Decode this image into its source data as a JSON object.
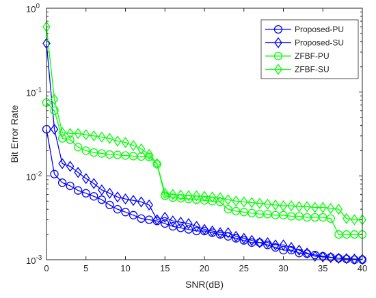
{
  "chart_data": {
    "type": "line",
    "xlabel": "SNR(dB)",
    "ylabel": "Bit Error Rate",
    "xlim": [
      0,
      40
    ],
    "ylim": [
      0.001,
      1
    ],
    "yscale": "log",
    "x_ticks": [
      0,
      5,
      10,
      15,
      20,
      25,
      30,
      35,
      40
    ],
    "y_ticks": [
      {
        "value": 1,
        "base": "10",
        "exp": "0"
      },
      {
        "value": 0.1,
        "base": "10",
        "exp": "-1"
      },
      {
        "value": 0.01,
        "base": "10",
        "exp": "-2"
      },
      {
        "value": 0.001,
        "base": "10",
        "exp": "-3"
      }
    ],
    "grid": false,
    "legend_position": "top-right",
    "x": [
      0,
      1,
      2,
      3,
      4,
      5,
      6,
      7,
      8,
      9,
      10,
      11,
      12,
      13,
      14,
      15,
      16,
      17,
      18,
      19,
      20,
      21,
      22,
      23,
      24,
      25,
      26,
      27,
      28,
      29,
      30,
      31,
      32,
      33,
      34,
      35,
      36,
      37,
      38,
      39,
      40
    ],
    "series": [
      {
        "name": "Proposed-PU",
        "color": "#0000ff",
        "marker": "circle",
        "values": [
          0.036,
          0.0105,
          0.0083,
          0.0076,
          0.0067,
          0.0062,
          0.0057,
          0.0052,
          0.0045,
          0.004,
          0.0037,
          0.0034,
          0.0031,
          0.003,
          0.0029,
          0.0027,
          0.0025,
          0.0024,
          0.0023,
          0.0022,
          0.0022,
          0.0021,
          0.002,
          0.0019,
          0.0018,
          0.0017,
          0.0016,
          0.0016,
          0.0015,
          0.0014,
          0.0013,
          0.0013,
          0.0012,
          0.00118,
          0.00114,
          0.0011,
          0.00107,
          0.00104,
          0.00102,
          0.001,
          0.001
        ]
      },
      {
        "name": "Proposed-SU",
        "color": "#0000ff",
        "marker": "diamond",
        "values": [
          0.38,
          0.036,
          0.014,
          0.013,
          0.011,
          0.0093,
          0.0081,
          0.0068,
          0.0062,
          0.0056,
          0.0053,
          0.0051,
          0.0049,
          0.0045,
          0.003,
          0.0032,
          0.0029,
          0.0028,
          0.0027,
          0.0025,
          0.0023,
          0.0022,
          0.0021,
          0.0021,
          0.0019,
          0.0018,
          0.0017,
          0.0016,
          0.0016,
          0.0015,
          0.0015,
          0.0014,
          0.0013,
          0.0012,
          0.0011,
          0.00108,
          0.00106,
          0.00104,
          0.00103,
          0.00102,
          0.00101
        ]
      },
      {
        "name": "ZFBF-PU",
        "color": "#00ff00",
        "marker": "circle",
        "values": [
          0.075,
          0.06,
          0.028,
          0.027,
          0.022,
          0.02,
          0.019,
          0.0185,
          0.018,
          0.0178,
          0.0175,
          0.0172,
          0.017,
          0.0168,
          0.0138,
          0.0058,
          0.0055,
          0.0054,
          0.0053,
          0.0052,
          0.0051,
          0.005,
          0.0049,
          0.004,
          0.0038,
          0.0037,
          0.0036,
          0.0035,
          0.0035,
          0.0034,
          0.0034,
          0.0033,
          0.0033,
          0.0032,
          0.0032,
          0.0032,
          0.0031,
          0.002,
          0.002,
          0.002,
          0.002
        ]
      },
      {
        "name": "ZFBF-SU",
        "color": "#00ff00",
        "marker": "diamond",
        "values": [
          0.6,
          0.082,
          0.033,
          0.032,
          0.032,
          0.031,
          0.03,
          0.029,
          0.028,
          0.026,
          0.025,
          0.023,
          0.021,
          0.018,
          0.014,
          0.0062,
          0.006,
          0.0059,
          0.0058,
          0.0058,
          0.0057,
          0.0056,
          0.0055,
          0.0052,
          0.005,
          0.0049,
          0.0048,
          0.0047,
          0.0046,
          0.0045,
          0.0044,
          0.0044,
          0.0043,
          0.0043,
          0.0042,
          0.0042,
          0.0041,
          0.004,
          0.0031,
          0.003,
          0.003
        ]
      }
    ]
  }
}
